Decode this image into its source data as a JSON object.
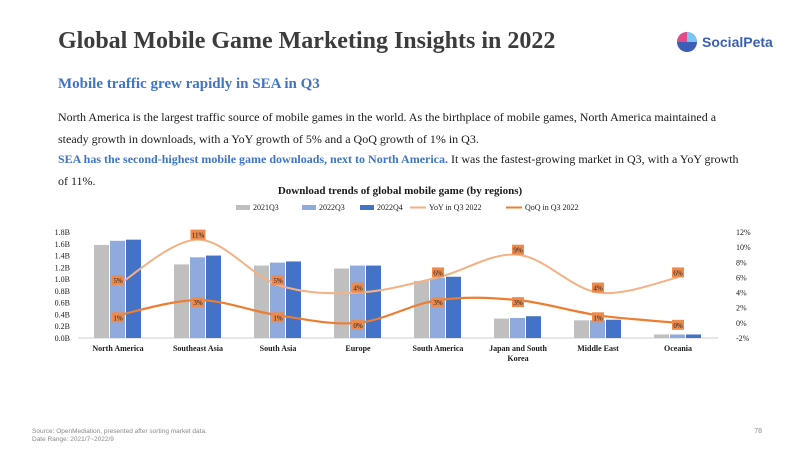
{
  "page": {
    "title": "Global Mobile Game Marketing Insights in 2022",
    "logo": {
      "text": "SocialPeta",
      "colors": [
        "#e64a86",
        "#3a5fb5"
      ]
    },
    "subtitle": "Mobile traffic grew rapidly in SEA in Q3",
    "paragraph1": "North America is the largest traffic source of mobile games in the world. As the birthplace of mobile games, North America maintained a steady growth in downloads, with a YoY growth of 5% and a QoQ growth of 1% in Q3.",
    "paragraph2_highlight": "SEA has the second-highest mobile game downloads, next to North America.",
    "paragraph2_rest": " It was the fastest-growing market in Q3, with a YoY growth of 11%.",
    "footer_source": "Source: OpenMediation, presented after sorting market data.",
    "footer_range": "Date Range: 2021/7~2022/9",
    "page_number": "78"
  },
  "colors": {
    "bar_2021Q3": "#bfbfbf",
    "bar_2022Q3": "#8faadc",
    "bar_2022Q4": "#4472c4",
    "yoy_line": "#f4b183",
    "qoq_line": "#ed7d31",
    "label_bg": "#ed8b4f"
  },
  "chart_data": {
    "type": "bar",
    "title": "Download trends of global mobile game (by regions)",
    "categories": [
      "North America",
      "Southeast Asia",
      "South Asia",
      "Europe",
      "South America",
      "Japan and South Korea",
      "Middle East",
      "Oceania"
    ],
    "series": [
      {
        "name": "2021Q3",
        "type": "bar",
        "axis": "left",
        "values": [
          1.58,
          1.25,
          1.23,
          1.18,
          0.97,
          0.33,
          0.3,
          0.06
        ]
      },
      {
        "name": "2022Q3",
        "type": "bar",
        "axis": "left",
        "values": [
          1.65,
          1.37,
          1.28,
          1.23,
          1.02,
          0.34,
          0.3,
          0.06
        ]
      },
      {
        "name": "2022Q4",
        "type": "bar",
        "axis": "left",
        "values": [
          1.67,
          1.4,
          1.3,
          1.23,
          1.04,
          0.37,
          0.31,
          0.06
        ]
      },
      {
        "name": "YoY in Q3 2022",
        "type": "line",
        "axis": "right",
        "values": [
          5,
          11,
          5,
          4,
          6,
          9,
          4,
          6
        ],
        "labels": [
          "5%",
          "11%",
          "5%",
          "4%",
          "6%",
          "9%",
          "4%",
          "6%"
        ]
      },
      {
        "name": "QoQ in Q3 2022",
        "type": "line",
        "axis": "right",
        "values": [
          1,
          3,
          1,
          0,
          3,
          3,
          1,
          0
        ],
        "labels": [
          "1%",
          "3%",
          "1%",
          "0%",
          "3%",
          "3%",
          "1%",
          "0%"
        ]
      }
    ],
    "left_axis": {
      "ylim": [
        0,
        1.8
      ],
      "ticks": [
        "0.0B",
        "0.2B",
        "0.4B",
        "0.6B",
        "0.8B",
        "1.0B",
        "1.2B",
        "1.4B",
        "1.6B",
        "1.8B"
      ]
    },
    "right_axis": {
      "ylim": [
        -2,
        12
      ],
      "ticks": [
        "-2%",
        "0%",
        "2%",
        "4%",
        "6%",
        "8%",
        "10%",
        "12%"
      ]
    },
    "legend": "top"
  }
}
